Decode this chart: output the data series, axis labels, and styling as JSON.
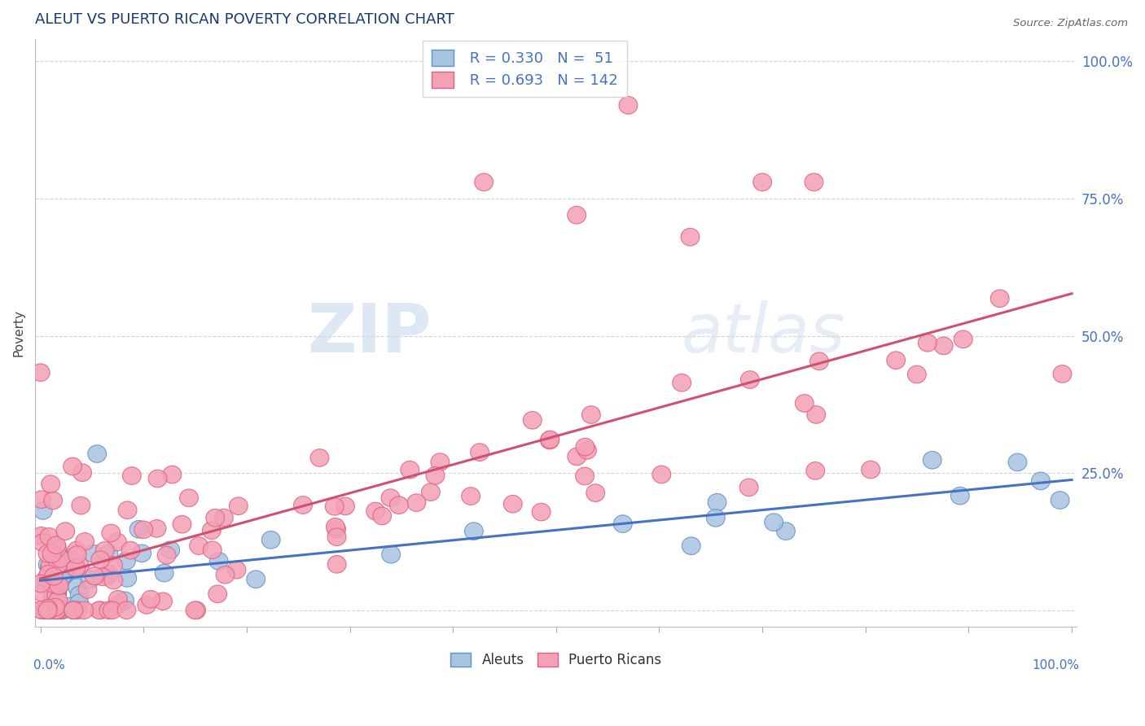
{
  "title": "ALEUT VS PUERTO RICAN POVERTY CORRELATION CHART",
  "source": "Source: ZipAtlas.com",
  "ylabel": "Poverty",
  "aleut_R": 0.33,
  "aleut_N": 51,
  "pr_R": 0.693,
  "pr_N": 142,
  "aleut_color": "#a8c4e0",
  "pr_color": "#f4a0b5",
  "aleut_edge_color": "#6090c8",
  "pr_edge_color": "#e06080",
  "aleut_line_color": "#4472c4",
  "pr_line_color": "#d05070",
  "title_color": "#1a3a6e",
  "axis_label_color": "#4472c4",
  "background_color": "#ffffff",
  "grid_color": "#ccccdd",
  "legend_R_color": "#4472c4",
  "ytick_labels": [
    "",
    "25.0%",
    "50.0%",
    "75.0%",
    "100.0%"
  ],
  "ytick_values": [
    0.0,
    0.25,
    0.5,
    0.75,
    1.0
  ]
}
